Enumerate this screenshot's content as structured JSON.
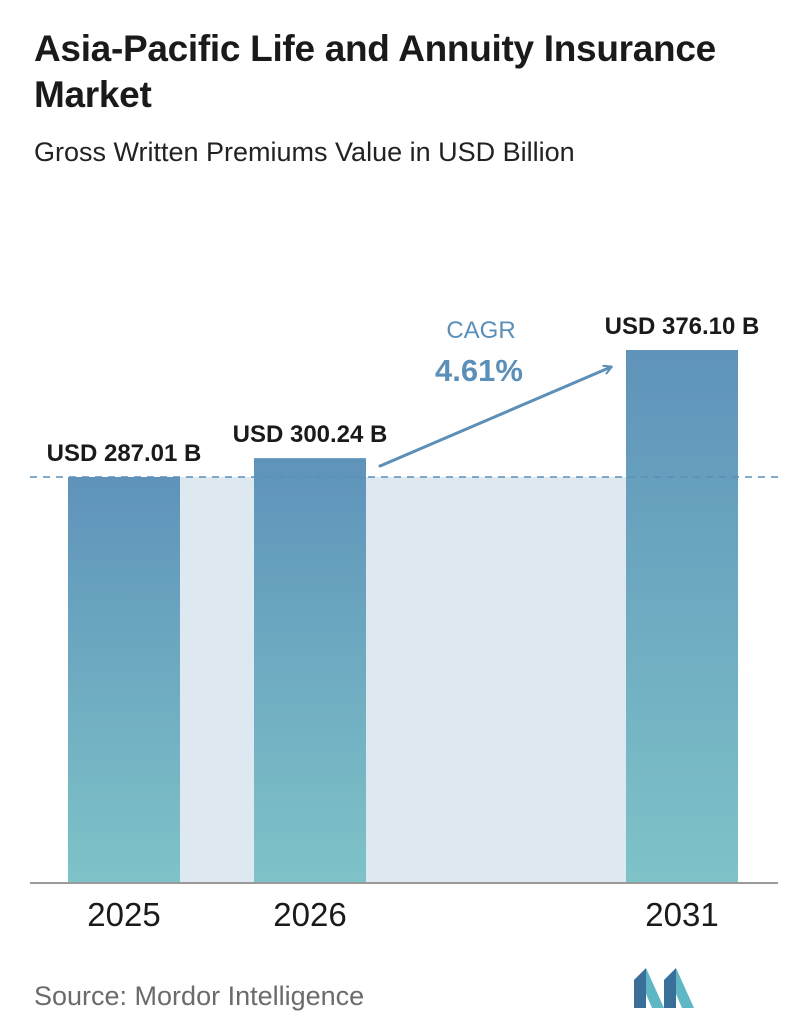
{
  "header": {
    "title": "Asia-Pacific Life and Annuity Insurance Market",
    "subtitle": "Gross Written Premiums Value in USD Billion"
  },
  "chart_data": {
    "type": "bar",
    "title": "Asia-Pacific Life and Annuity Insurance Market",
    "subtitle": "Gross Written Premiums Value in USD Billion",
    "categories": [
      "2025",
      "2026",
      "2031"
    ],
    "values": [
      287.01,
      300.24,
      376.1
    ],
    "data_labels": [
      "USD 287.01 B",
      "USD 300.24 B",
      "USD 376.10 B"
    ],
    "reference_line": 287.01,
    "annotation": {
      "label": "CAGR",
      "value": "4.61%"
    },
    "ylim": [
      0,
      376.1
    ],
    "grid": false,
    "legend": "none",
    "colors": {
      "bar_top": "#5f93ba",
      "bar_bottom": "#7ec3c8",
      "band": "#dde8f1",
      "accent": "#5b8fb8",
      "axis": "#9a9a9a"
    }
  },
  "footer": {
    "source": "Source:  Mordor Intelligence",
    "logo_icon": "mordor-intelligence-logo-icon"
  }
}
